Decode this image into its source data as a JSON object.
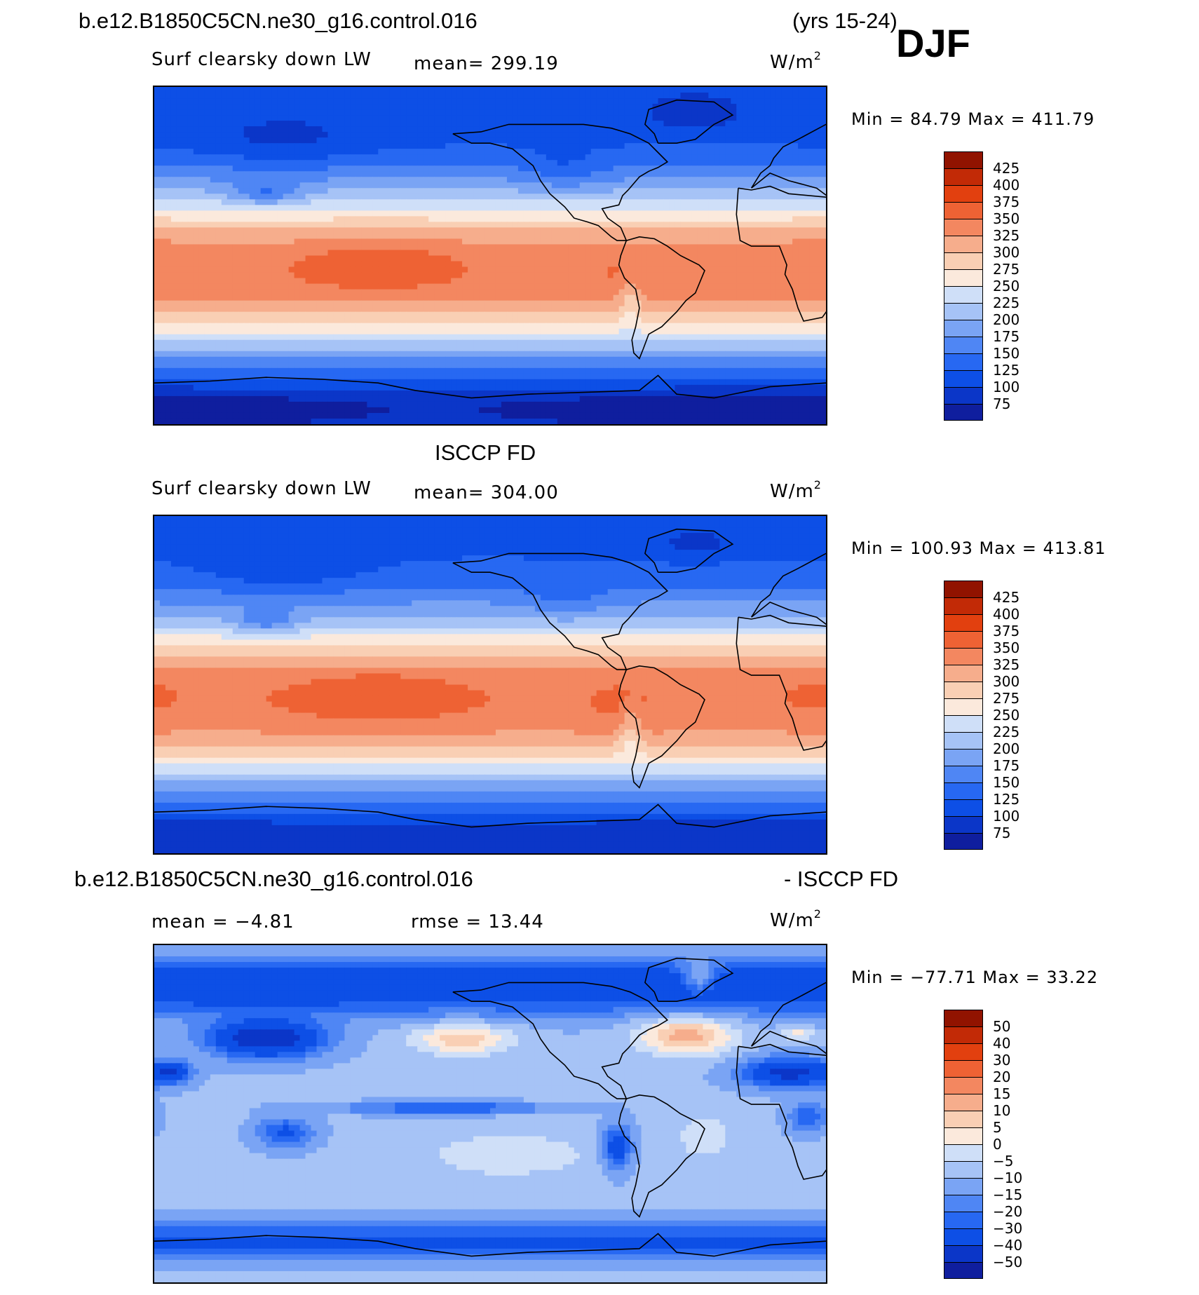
{
  "header": {
    "case_name": "b.e12.B1850C5CN.ne30_g16.control.016",
    "years": "(yrs 15-24)",
    "season": "DJF"
  },
  "panels": [
    {
      "id": "model",
      "title": "",
      "variable": "Surf clearsky down LW",
      "stat": "mean= 299.19",
      "units_base": "W/m",
      "units_exp": "2",
      "minmax": "Min =  84.79 Max = 411.79",
      "legend_levels": [
        "425",
        "400",
        "375",
        "350",
        "325",
        "300",
        "275",
        "250",
        "225",
        "200",
        "175",
        "150",
        "125",
        "100",
        "75"
      ],
      "field": {
        "equator": 368,
        "peak_lat": -8,
        "south_pole": 95,
        "north_pole": 128,
        "warm_pool_anomaly": 30
      }
    },
    {
      "id": "obs",
      "title": "ISCCP FD",
      "variable": "Surf clearsky down LW",
      "stat": "mean= 304.00",
      "units_base": "W/m",
      "units_exp": "2",
      "minmax": "Min = 100.93 Max = 413.81",
      "legend_levels": [
        "425",
        "400",
        "375",
        "350",
        "325",
        "300",
        "275",
        "250",
        "225",
        "200",
        "175",
        "150",
        "125",
        "100",
        "75"
      ],
      "field": {
        "equator": 372,
        "peak_lat": -8,
        "south_pole": 110,
        "north_pole": 140,
        "warm_pool_anomaly": 28
      }
    },
    {
      "id": "diff",
      "title_left": "b.e12.B1850C5CN.ne30_g16.control.016",
      "title_right": "- ISCCP FD",
      "mean": "mean =  −4.81",
      "rmse": "rmse =  13.44",
      "units_base": "W/m",
      "units_exp": "2",
      "minmax": "Min = −77.71 Max =  33.22",
      "legend_levels": [
        "50",
        "40",
        "30",
        "20",
        "15",
        "10",
        "5",
        "0",
        "−5",
        "−10",
        "−15",
        "−20",
        "−30",
        "−40",
        "−50"
      ]
    }
  ],
  "colors": {
    "abs_scale": [
      "#0a0a78",
      "#0f1e9e",
      "#0b36c8",
      "#0d4fe6",
      "#2768f2",
      "#4f86f4",
      "#7aa4f4",
      "#a6c3f6",
      "#cfdff8",
      "#fbe9dc",
      "#f9cfb4",
      "#f6ad8c",
      "#f38760",
      "#ee6234",
      "#e2400f",
      "#c22a06",
      "#911300"
    ],
    "diff_scale": [
      "#0a0a78",
      "#0f1e9e",
      "#0b36c8",
      "#0d4fe6",
      "#2768f2",
      "#4f86f4",
      "#7aa4f4",
      "#a6c3f6",
      "#cfdff8",
      "#fbe9dc",
      "#f9cfb4",
      "#f6ad8c",
      "#f38760",
      "#ee6234",
      "#e2400f",
      "#c22a06",
      "#911300"
    ]
  }
}
